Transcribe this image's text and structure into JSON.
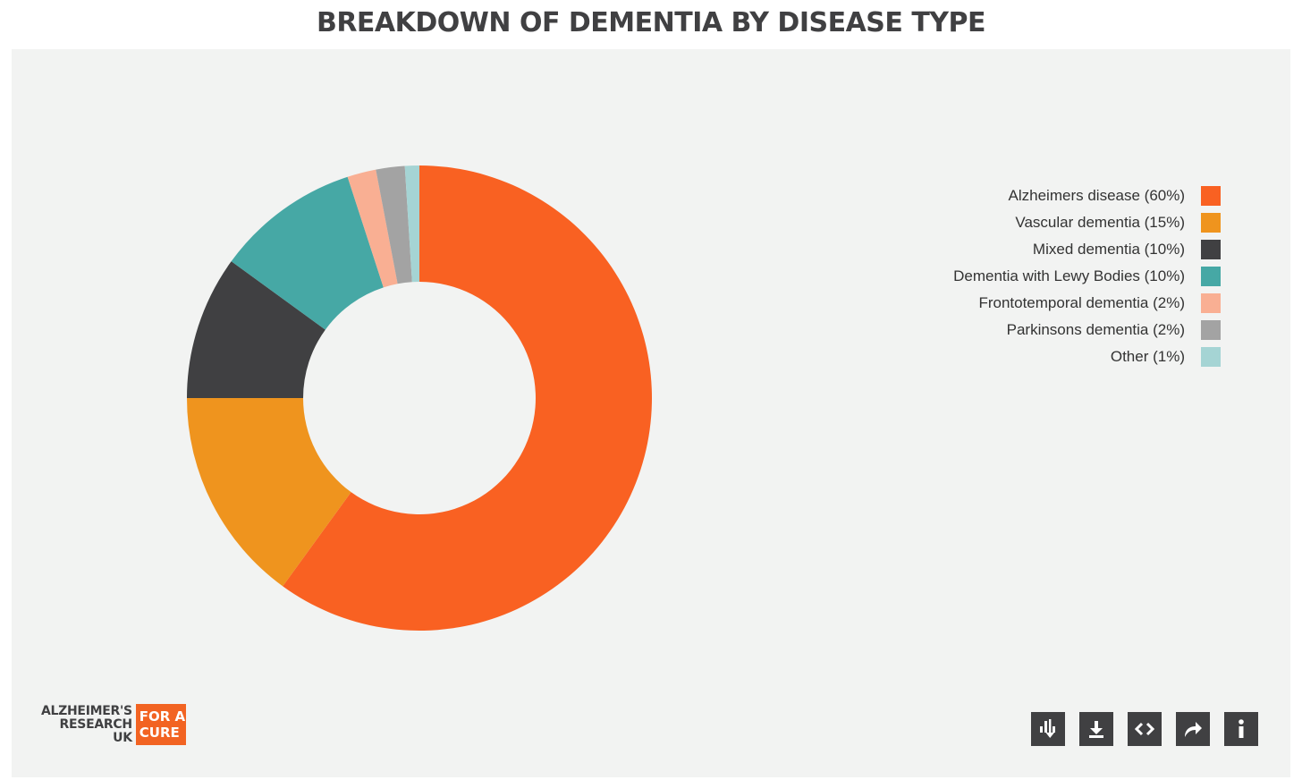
{
  "chart_data": {
    "type": "pie",
    "donut": true,
    "title": "BREAKDOWN OF DEMENTIA BY DISEASE TYPE",
    "categories": [
      "Alzheimers disease (60%)",
      "Vascular dementia (15%)",
      "Mixed dementia (10%)",
      "Dementia with Lewy Bodies (10%)",
      "Frontotemporal dementia (2%)",
      "Parkinsons dementia (2%)",
      "Other (1%)"
    ],
    "values": [
      60,
      15,
      10,
      10,
      2,
      2,
      1
    ],
    "colors": [
      "#f96122",
      "#ef941e",
      "#404042",
      "#46a8a5",
      "#f9af93",
      "#a3a3a3",
      "#a5d4d4"
    ],
    "legend_position": "right"
  },
  "branding": {
    "logo_lines": [
      "ALZHEIMER'S",
      "RESEARCH",
      "UK"
    ],
    "badge_lines": [
      "FOR A",
      "CURE"
    ]
  },
  "toolbar": {
    "buttons": [
      {
        "icon": "chart-download-icon"
      },
      {
        "icon": "download-icon"
      },
      {
        "icon": "embed-code-icon"
      },
      {
        "icon": "share-icon"
      },
      {
        "icon": "info-icon"
      }
    ]
  }
}
